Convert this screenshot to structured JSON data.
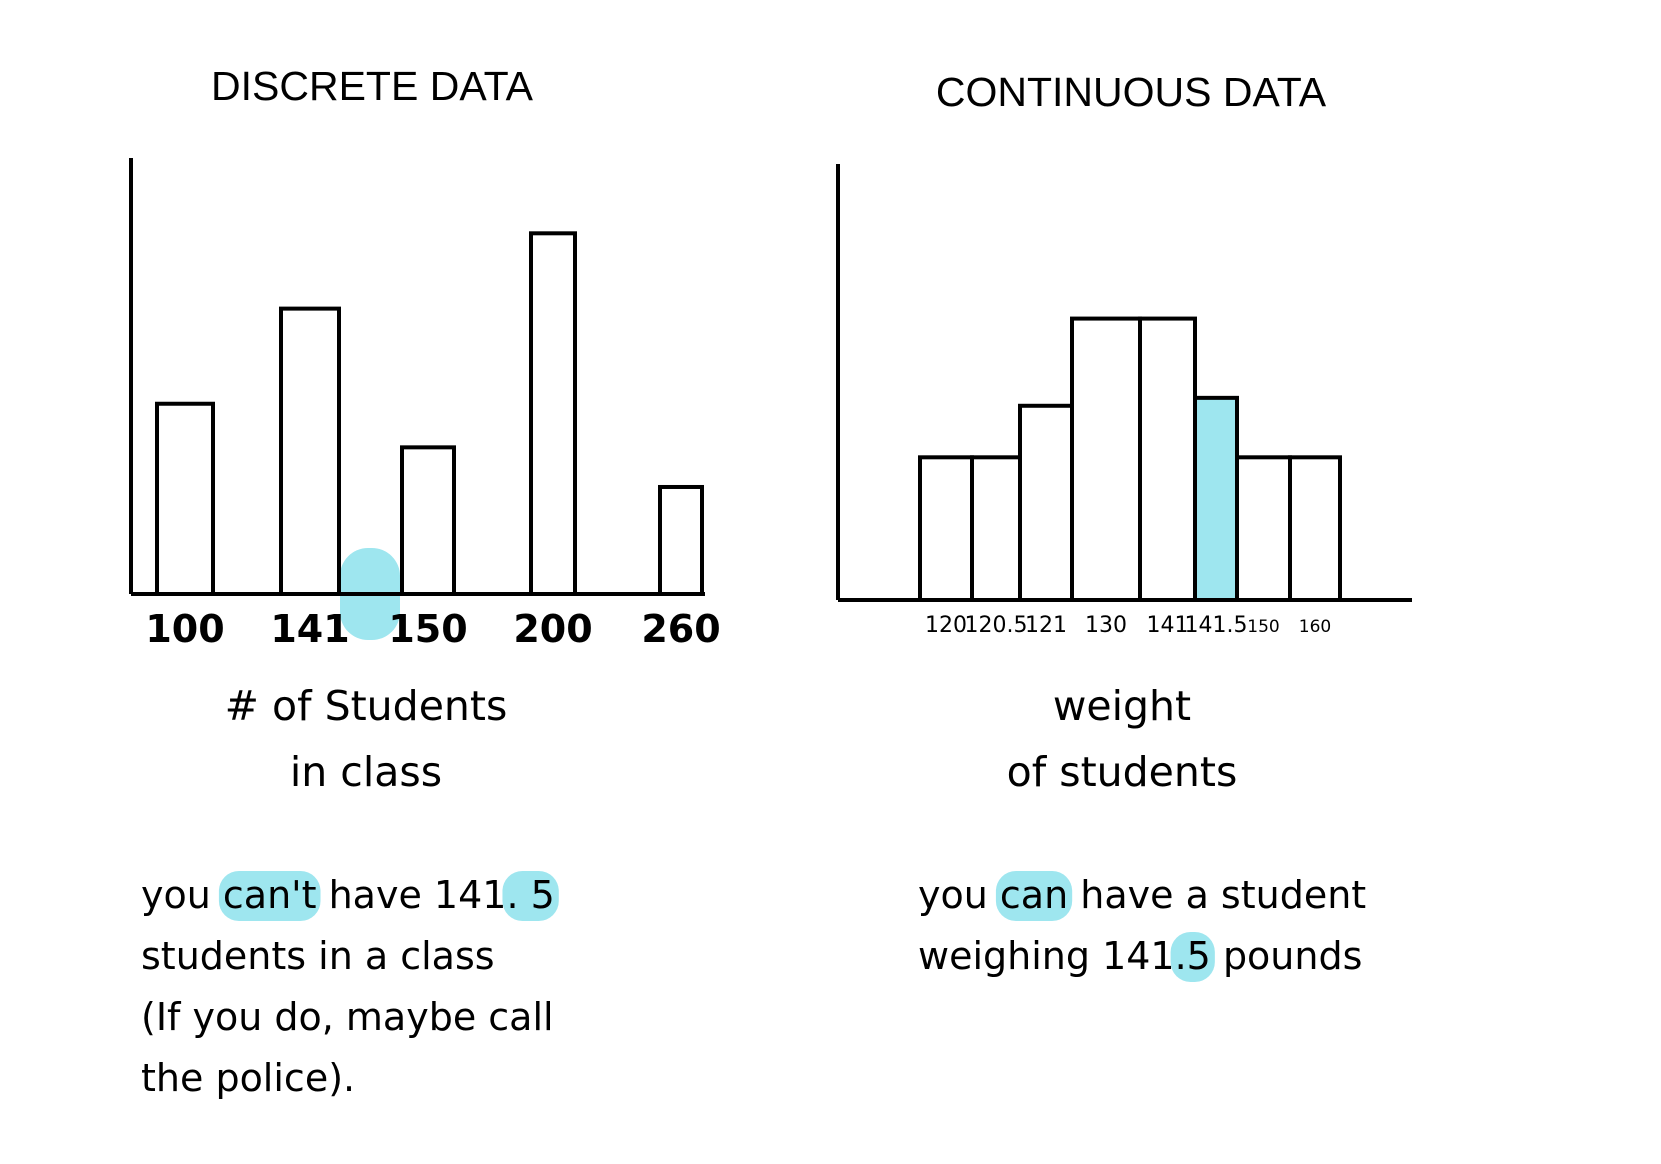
{
  "highlight_color": "#9ee6ef",
  "discrete": {
    "title": "DISCRETE DATA",
    "caption_lines": [
      "# of Students",
      "in class"
    ],
    "note_lines": [
      [
        {
          "t": "you "
        },
        {
          "t": "can't",
          "hl": true
        },
        {
          "t": " have 141"
        },
        {
          "t": ". 5",
          "hl": true
        }
      ],
      [
        {
          "t": "students in a class"
        }
      ],
      [
        {
          "t": "(If you do, maybe call"
        }
      ],
      [
        {
          "t": "the police)."
        }
      ]
    ]
  },
  "continuous": {
    "title": "CONTINUOUS DATA",
    "caption_lines": [
      "weight",
      "of students"
    ],
    "note_lines": [
      [
        {
          "t": "you "
        },
        {
          "t": "can",
          "hl": true
        },
        {
          "t": " have a student"
        }
      ],
      [
        {
          "t": "weighing 141"
        },
        {
          "t": ".5",
          "hl": true
        },
        {
          "t": " pounds"
        }
      ]
    ]
  },
  "chart_data": [
    {
      "type": "bar",
      "title": "DISCRETE DATA",
      "xlabel": "# of Students in class",
      "categories": [
        "100",
        "141",
        "150",
        "200",
        "260"
      ],
      "values": [
        4.8,
        7.2,
        3.7,
        9.1,
        2.7
      ],
      "ylim": [
        0,
        11
      ],
      "highlight_gap_after": "141",
      "grid": false
    },
    {
      "type": "bar",
      "title": "CONTINUOUS DATA",
      "xlabel": "weight of students",
      "categories": [
        "120",
        "120.5",
        "121",
        "130",
        "141",
        "141.5",
        "150",
        "160"
      ],
      "values": [
        3.6,
        3.6,
        4.9,
        7.1,
        7.1,
        5.1,
        3.6,
        3.6
      ],
      "ylim": [
        0,
        11
      ],
      "highlighted_category": "141.5",
      "grid": false
    }
  ]
}
